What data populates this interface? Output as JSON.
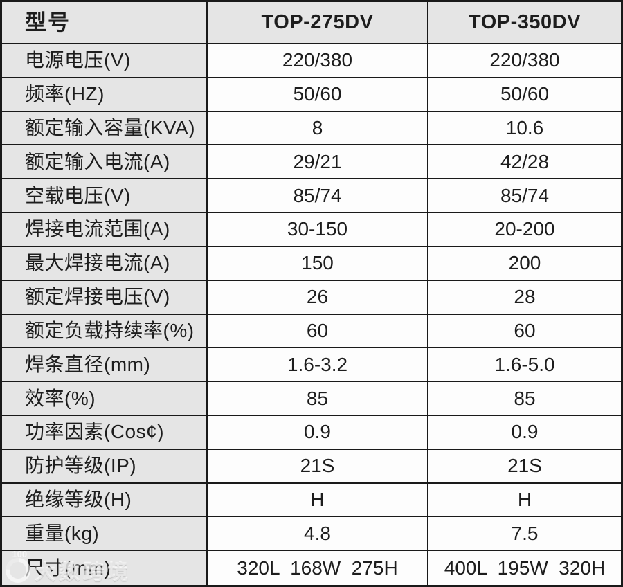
{
  "table": {
    "header": {
      "model_label": "型号",
      "models": [
        "TOP-275DV",
        "TOP-350DV"
      ]
    },
    "rows": [
      {
        "label": "电源电压(V)",
        "values": [
          "220/380",
          "220/380"
        ]
      },
      {
        "label": "频率(HZ)",
        "values": [
          "50/60",
          "50/60"
        ]
      },
      {
        "label": "额定输入容量(KVA)",
        "values": [
          "8",
          "10.6"
        ]
      },
      {
        "label": "额定输入电流(A)",
        "values": [
          "29/21",
          "42/28"
        ]
      },
      {
        "label": "空载电压(V)",
        "values": [
          "85/74",
          "85/74"
        ]
      },
      {
        "label": "焊接电流范围(A)",
        "values": [
          "30-150",
          "20-200"
        ]
      },
      {
        "label": "最大焊接电流(A)",
        "values": [
          "150",
          "200"
        ]
      },
      {
        "label": "额定焊接电压(V)",
        "values": [
          "26",
          "28"
        ]
      },
      {
        "label": "额定负载持续率(%)",
        "values": [
          "60",
          "60"
        ]
      },
      {
        "label": "焊条直径(mm)",
        "values": [
          "1.6-3.2",
          "1.6-5.0"
        ]
      },
      {
        "label": "效率(%)",
        "values": [
          "85",
          "85"
        ]
      },
      {
        "label": "功率因素(Cos¢)",
        "values": [
          "0.9",
          "0.9"
        ]
      },
      {
        "label": "防护等级(IP)",
        "values": [
          "21S",
          "21S"
        ]
      },
      {
        "label": "绝缘等级(H)",
        "values": [
          "H",
          "H"
        ]
      },
      {
        "label": "重量(kg)",
        "values": [
          "4.8",
          "7.5"
        ]
      },
      {
        "label": "尺寸(mm)",
        "values": [
          "320L  168W  275H",
          "400L  195W  320H"
        ]
      }
    ]
  },
  "watermark": {
    "logo_text": "100",
    "text": "大数跨境"
  },
  "colors": {
    "header_bg": "#e5e5e5",
    "label_bg": "#e5e5e5",
    "cell_bg": "#fdfdfd",
    "border": "#1a1a1a",
    "text": "#1d1d1d"
  }
}
